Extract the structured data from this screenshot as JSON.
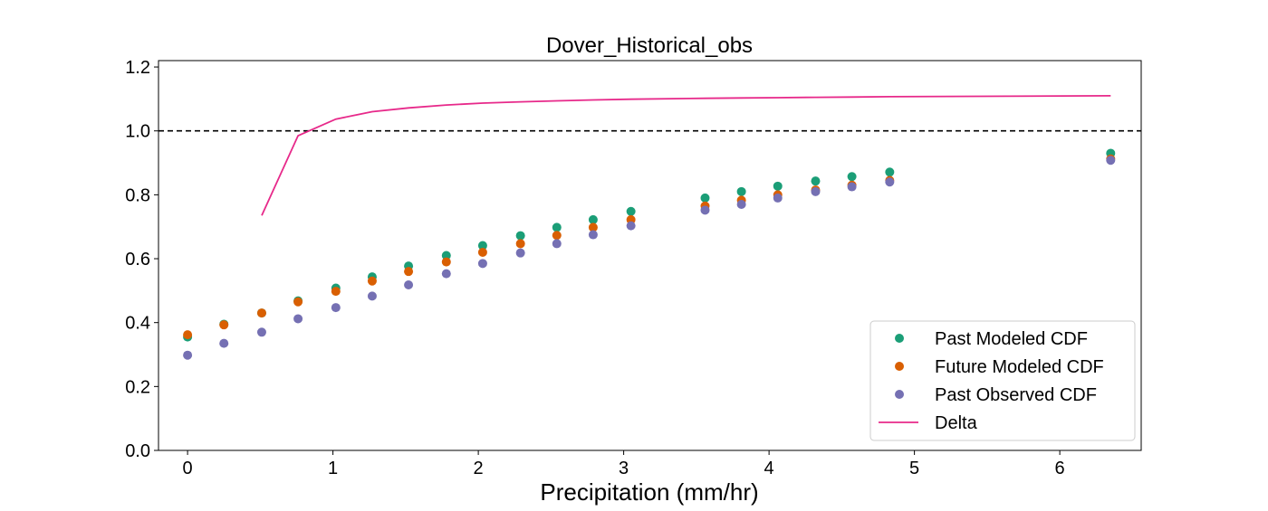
{
  "chart_data": {
    "type": "scatter",
    "title": "Dover_Historical_obs",
    "xlabel": "Precipitation (mm/hr)",
    "ylabel": "",
    "xlim": [
      -0.2,
      6.56
    ],
    "ylim": [
      0.0,
      1.22
    ],
    "xticks": [
      0,
      1,
      2,
      3,
      4,
      5,
      6
    ],
    "yticks": [
      0.0,
      0.2,
      0.4,
      0.6,
      0.8,
      1.0,
      1.2
    ],
    "xtick_labels": [
      "0",
      "1",
      "2",
      "3",
      "4",
      "5",
      "6"
    ],
    "ytick_labels": [
      "0.0",
      "0.2",
      "0.4",
      "0.6",
      "0.8",
      "1.0",
      "1.2"
    ],
    "grid": false,
    "legend_position": "bottom-right",
    "reference_line": {
      "y": 1.0,
      "style": "dashed",
      "color": "#000000"
    },
    "x": [
      0.0,
      0.25,
      0.51,
      0.76,
      1.02,
      1.27,
      1.52,
      1.78,
      2.03,
      2.29,
      2.54,
      2.79,
      3.05,
      3.56,
      3.81,
      4.06,
      4.32,
      4.57,
      4.83,
      6.35
    ],
    "series": [
      {
        "name": "Past Modeled CDF",
        "kind": "scatter",
        "color": "#1b9e77",
        "values": [
          0.355,
          0.395,
          0.43,
          0.468,
          0.508,
          0.543,
          0.577,
          0.61,
          0.641,
          0.672,
          0.698,
          0.722,
          0.748,
          0.79,
          0.81,
          0.827,
          0.843,
          0.857,
          0.871,
          0.93
        ]
      },
      {
        "name": "Future Modeled CDF",
        "kind": "scatter",
        "color": "#d95f02",
        "values": [
          0.362,
          0.393,
          0.43,
          0.465,
          0.498,
          0.53,
          0.56,
          0.59,
          0.62,
          0.647,
          0.673,
          0.698,
          0.722,
          0.765,
          0.783,
          0.8,
          0.815,
          0.83,
          0.845,
          0.912
        ]
      },
      {
        "name": "Past Observed CDF",
        "kind": "scatter",
        "color": "#7570b3",
        "values": [
          0.298,
          0.335,
          0.37,
          0.412,
          0.447,
          0.483,
          0.518,
          0.553,
          0.585,
          0.618,
          0.647,
          0.675,
          0.703,
          0.752,
          0.77,
          0.79,
          0.81,
          0.825,
          0.84,
          0.908
        ]
      },
      {
        "name": "Delta",
        "kind": "line",
        "color": "#e7298a",
        "x": [
          0.51,
          0.76,
          1.02,
          1.27,
          1.52,
          1.78,
          2.03,
          2.29,
          2.54,
          2.79,
          3.05,
          3.56,
          3.81,
          4.06,
          4.32,
          4.57,
          4.83,
          6.35
        ],
        "values": [
          0.735,
          0.985,
          1.037,
          1.06,
          1.072,
          1.081,
          1.087,
          1.091,
          1.094,
          1.097,
          1.099,
          1.102,
          1.103,
          1.104,
          1.105,
          1.106,
          1.107,
          1.11
        ]
      }
    ]
  }
}
